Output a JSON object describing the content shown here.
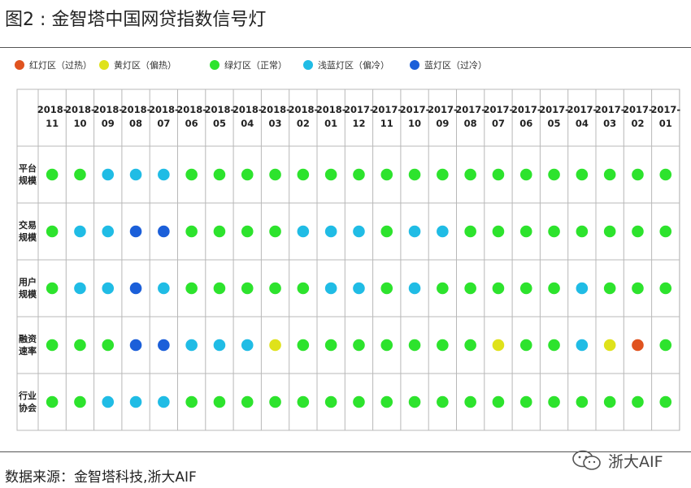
{
  "header": {
    "title": "图2 : 金智塔中国网贷指数信号灯"
  },
  "footer": {
    "source": "数据来源：金智塔科技,浙大AIF",
    "watermark": "浙大AIF"
  },
  "colors": {
    "red": "#e0531f",
    "yellow": "#dfe21b",
    "green": "#2de32d",
    "lightblue": "#20bce5",
    "blue": "#1b5fd9",
    "grid": "#b8b8b8"
  },
  "chart_data": {
    "type": "table",
    "title": "图2 : 金智塔中国网贷指数信号灯",
    "legend": [
      {
        "key": "red",
        "label": "红灯区（过热）"
      },
      {
        "key": "yellow",
        "label": "黄灯区（偏热）"
      },
      {
        "key": "green",
        "label": "绿灯区（正常）"
      },
      {
        "key": "lightblue",
        "label": "浅蓝灯区（偏冷）"
      },
      {
        "key": "blue",
        "label": "蓝灯区（过冷）"
      }
    ],
    "columns": [
      [
        "2018-",
        "11"
      ],
      [
        "2018-",
        "10"
      ],
      [
        "2018-",
        "09"
      ],
      [
        "2018-",
        "08"
      ],
      [
        "2018-",
        "07"
      ],
      [
        "2018-",
        "06"
      ],
      [
        "2018-",
        "05"
      ],
      [
        "2018-",
        "04"
      ],
      [
        "2018-",
        "03"
      ],
      [
        "2018-",
        "02"
      ],
      [
        "2018-",
        "01"
      ],
      [
        "2017-",
        "12"
      ],
      [
        "2017-",
        "11"
      ],
      [
        "2017-",
        "10"
      ],
      [
        "2017-",
        "09"
      ],
      [
        "2017-",
        "08"
      ],
      [
        "2017-",
        "07"
      ],
      [
        "2017-",
        "06"
      ],
      [
        "2017-",
        "05"
      ],
      [
        "2017-",
        "04"
      ],
      [
        "2017-",
        "03"
      ],
      [
        "2017-",
        "02"
      ],
      [
        "2017-",
        "01"
      ]
    ],
    "rows": [
      {
        "label": [
          "平台",
          "规模"
        ],
        "values": [
          "green",
          "green",
          "lightblue",
          "lightblue",
          "lightblue",
          "green",
          "green",
          "green",
          "green",
          "green",
          "green",
          "green",
          "green",
          "green",
          "green",
          "green",
          "green",
          "green",
          "green",
          "green",
          "green",
          "green",
          "green"
        ]
      },
      {
        "label": [
          "交易",
          "规模"
        ],
        "values": [
          "green",
          "lightblue",
          "lightblue",
          "blue",
          "blue",
          "green",
          "green",
          "green",
          "green",
          "lightblue",
          "lightblue",
          "lightblue",
          "green",
          "lightblue",
          "lightblue",
          "green",
          "green",
          "green",
          "green",
          "green",
          "green",
          "green",
          "green"
        ]
      },
      {
        "label": [
          "用户",
          "规模"
        ],
        "values": [
          "green",
          "lightblue",
          "lightblue",
          "blue",
          "lightblue",
          "green",
          "green",
          "green",
          "green",
          "green",
          "lightblue",
          "lightblue",
          "green",
          "lightblue",
          "green",
          "green",
          "green",
          "green",
          "green",
          "lightblue",
          "green",
          "green",
          "green"
        ]
      },
      {
        "label": [
          "融资",
          "速率"
        ],
        "values": [
          "green",
          "green",
          "green",
          "blue",
          "blue",
          "lightblue",
          "lightblue",
          "lightblue",
          "yellow",
          "green",
          "green",
          "green",
          "green",
          "green",
          "green",
          "green",
          "yellow",
          "green",
          "green",
          "lightblue",
          "yellow",
          "red",
          "green"
        ]
      },
      {
        "label": [
          "行业",
          "协会"
        ],
        "values": [
          "green",
          "green",
          "lightblue",
          "lightblue",
          "lightblue",
          "green",
          "green",
          "green",
          "green",
          "green",
          "green",
          "green",
          "green",
          "green",
          "green",
          "green",
          "green",
          "green",
          "green",
          "green",
          "green",
          "green",
          "green"
        ]
      }
    ]
  }
}
